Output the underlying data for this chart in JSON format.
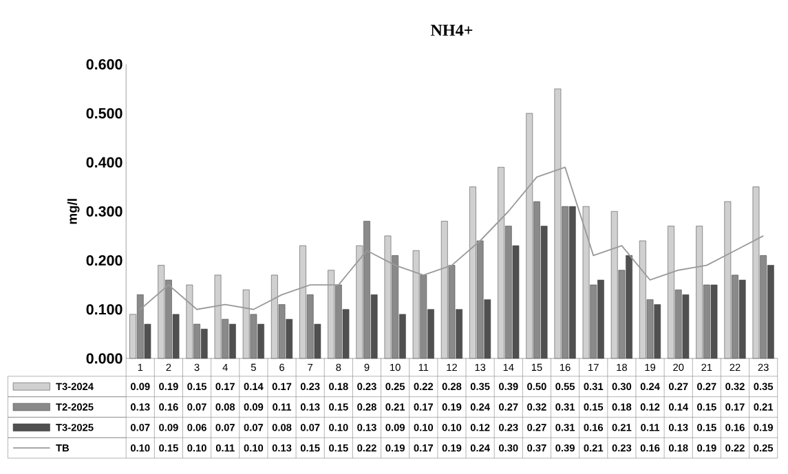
{
  "chart_data": {
    "type": "bar",
    "title": "NH4+",
    "ylabel": "mg/l",
    "categories": [
      "1",
      "2",
      "3",
      "4",
      "5",
      "6",
      "7",
      "8",
      "9",
      "10",
      "11",
      "12",
      "13",
      "14",
      "15",
      "16",
      "17",
      "18",
      "19",
      "20",
      "21",
      "22",
      "23"
    ],
    "series": [
      {
        "name": "T3-2024",
        "color": "#d0d0d0",
        "values": [
          0.09,
          0.19,
          0.15,
          0.17,
          0.14,
          0.17,
          0.23,
          0.18,
          0.23,
          0.25,
          0.22,
          0.28,
          0.35,
          0.39,
          0.5,
          0.55,
          0.31,
          0.3,
          0.24,
          0.27,
          0.27,
          0.32,
          0.35
        ],
        "value_labels": [
          "0.09",
          "0.19",
          "0.15",
          "0.17",
          "0.14",
          "0.17",
          "0.23",
          "0.18",
          "0.23",
          "0.25",
          "0.22",
          "0.28",
          "0.35",
          "0.39",
          "0.50",
          "0.55",
          "0.31",
          "0.30",
          "0.24",
          "0.27",
          "0.27",
          "0.32",
          "0.35"
        ]
      },
      {
        "name": "T2-2025",
        "color": "#8a8a8a",
        "values": [
          0.13,
          0.16,
          0.07,
          0.08,
          0.09,
          0.11,
          0.13,
          0.15,
          0.28,
          0.21,
          0.17,
          0.19,
          0.24,
          0.27,
          0.32,
          0.31,
          0.15,
          0.18,
          0.12,
          0.14,
          0.15,
          0.17,
          0.21
        ],
        "value_labels": [
          "0.13",
          "0.16",
          "0.07",
          "0.08",
          "0.09",
          "0.11",
          "0.13",
          "0.15",
          "0.28",
          "0.21",
          "0.17",
          "0.19",
          "0.24",
          "0.27",
          "0.32",
          "0.31",
          "0.15",
          "0.18",
          "0.12",
          "0.14",
          "0.15",
          "0.17",
          "0.21"
        ]
      },
      {
        "name": "T3-2025",
        "color": "#505050",
        "values": [
          0.07,
          0.09,
          0.06,
          0.07,
          0.07,
          0.08,
          0.07,
          0.1,
          0.13,
          0.09,
          0.1,
          0.1,
          0.12,
          0.23,
          0.27,
          0.31,
          0.16,
          0.21,
          0.11,
          0.13,
          0.15,
          0.16,
          0.19
        ],
        "value_labels": [
          "0.07",
          "0.09",
          "0.06",
          "0.07",
          "0.07",
          "0.08",
          "0.07",
          "0.10",
          "0.13",
          "0.09",
          "0.10",
          "0.10",
          "0.12",
          "0.23",
          "0.27",
          "0.31",
          "0.16",
          "0.21",
          "0.11",
          "0.13",
          "0.15",
          "0.16",
          "0.19"
        ]
      },
      {
        "name": "TB",
        "type": "line",
        "color": "#9a9a9a",
        "values": [
          0.1,
          0.15,
          0.1,
          0.11,
          0.1,
          0.13,
          0.15,
          0.15,
          0.22,
          0.19,
          0.17,
          0.19,
          0.24,
          0.3,
          0.37,
          0.39,
          0.21,
          0.23,
          0.16,
          0.18,
          0.19,
          0.22,
          0.25
        ],
        "value_labels": [
          "0.10",
          "0.15",
          "0.10",
          "0.11",
          "0.10",
          "0.13",
          "0.15",
          "0.15",
          "0.22",
          "0.19",
          "0.17",
          "0.19",
          "0.24",
          "0.30",
          "0.37",
          "0.39",
          "0.21",
          "0.23",
          "0.16",
          "0.18",
          "0.19",
          "0.22",
          "0.25"
        ]
      }
    ],
    "ylim": [
      0,
      0.6
    ],
    "yticks": [
      {
        "value": 0,
        "label": "0.000"
      },
      {
        "value": 0.1,
        "label": "0.100"
      },
      {
        "value": 0.2,
        "label": "0.200"
      },
      {
        "value": 0.3,
        "label": "0.300"
      },
      {
        "value": 0.4,
        "label": "0.400"
      },
      {
        "value": 0.5,
        "label": "0.500"
      },
      {
        "value": 0.6,
        "label": "0.600"
      }
    ],
    "legend": "bottom",
    "grid": false
  }
}
